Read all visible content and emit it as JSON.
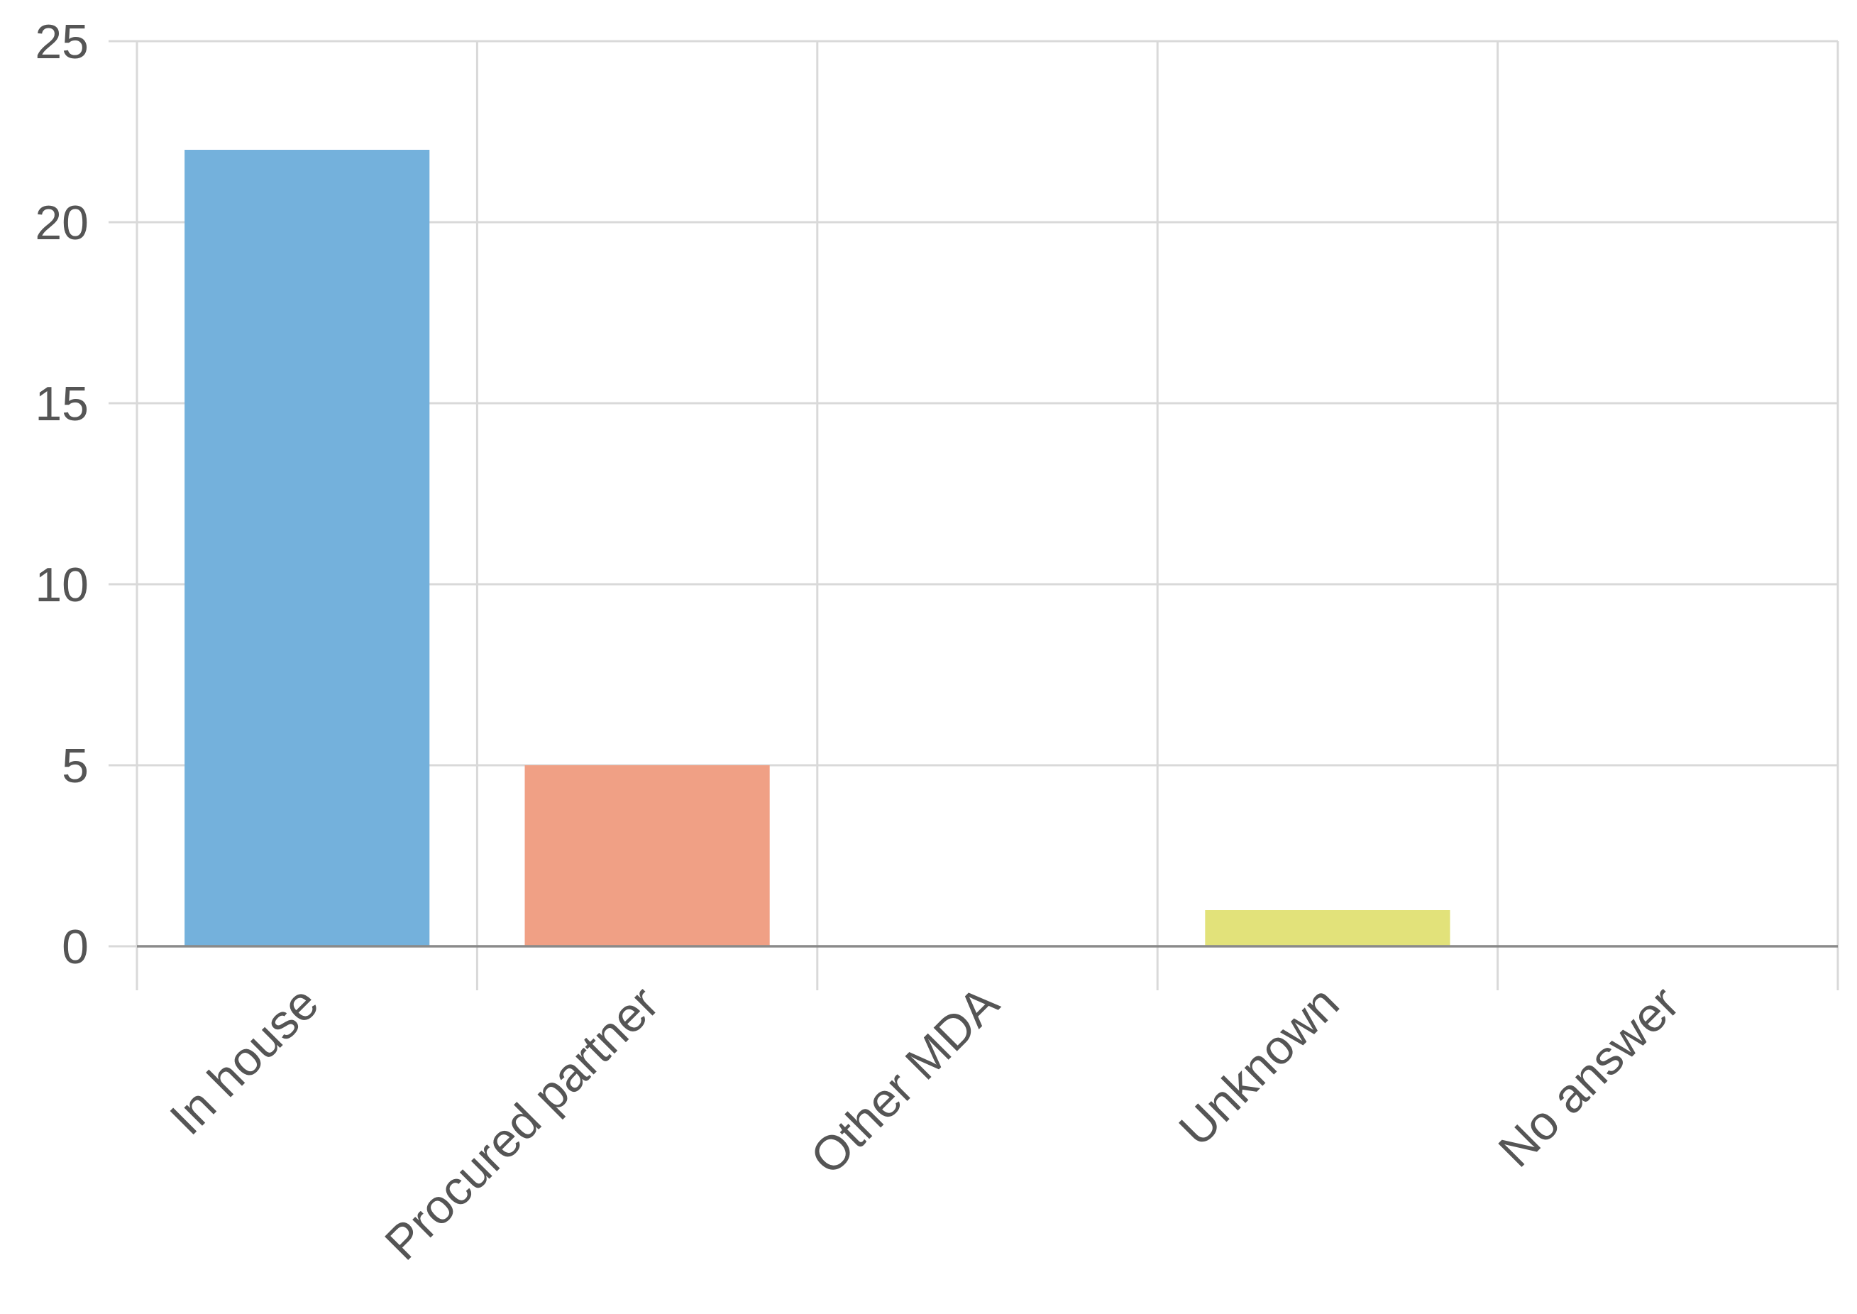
{
  "chart_data": {
    "type": "bar",
    "title": "",
    "xlabel": "",
    "ylabel": "",
    "categories": [
      "In house",
      "Procured partner",
      "Other MDA",
      "Unknown",
      "No answer"
    ],
    "values": [
      22,
      5,
      0,
      1,
      0
    ],
    "ylim": [
      0,
      25
    ],
    "yticks": [
      0,
      5,
      10,
      15,
      20,
      25
    ],
    "grid": true,
    "legend": "none",
    "colors": [
      "#74b1dc",
      "#f0a085",
      "#c6c3e2",
      "#e2e27a",
      "#a0d6b6"
    ],
    "x_tick_rotation": "-45deg"
  }
}
